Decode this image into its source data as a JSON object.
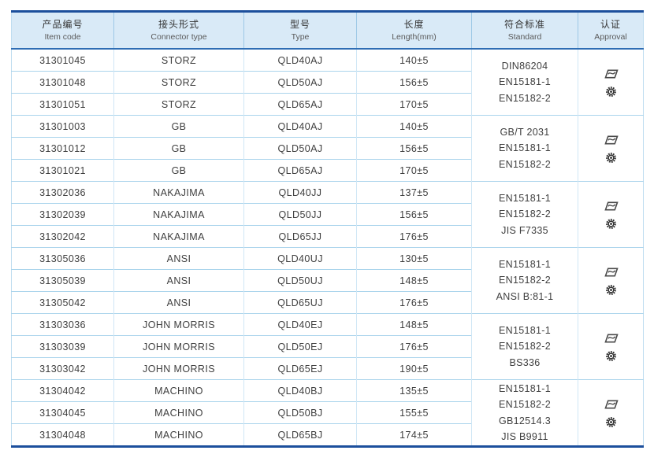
{
  "colors": {
    "table_border": "#1c4f9c",
    "header_bg": "#d9eaf7",
    "grid_line": "#aad4ec",
    "text": "#3f3f3f"
  },
  "table": {
    "columns": [
      {
        "zh": "产品编号",
        "en": "Item code"
      },
      {
        "zh": "接头形式",
        "en": "Connector type"
      },
      {
        "zh": "型号",
        "en": "Type"
      },
      {
        "zh": "长度",
        "en": "Length(mm)"
      },
      {
        "zh": "符合标准",
        "en": "Standard"
      },
      {
        "zh": "认证",
        "en": "Approval"
      }
    ],
    "groups": [
      {
        "rows": [
          {
            "code": "31301045",
            "connector": "STORZ",
            "type": "QLD40AJ",
            "length": "140±5"
          },
          {
            "code": "31301048",
            "connector": "STORZ",
            "type": "QLD50AJ",
            "length": "156±5"
          },
          {
            "code": "31301051",
            "connector": "STORZ",
            "type": "QLD65AJ",
            "length": "170±5"
          }
        ],
        "standards": [
          "DIN86204",
          "EN15181-1",
          "EN15182-2"
        ],
        "approval_icons": [
          "certification-flag-logo-icon",
          "certification-gear-seal-icon"
        ]
      },
      {
        "rows": [
          {
            "code": "31301003",
            "connector": "GB",
            "type": "QLD40AJ",
            "length": "140±5"
          },
          {
            "code": "31301012",
            "connector": "GB",
            "type": "QLD50AJ",
            "length": "156±5"
          },
          {
            "code": "31301021",
            "connector": "GB",
            "type": "QLD65AJ",
            "length": "170±5"
          }
        ],
        "standards": [
          "GB/T 2031",
          "EN15181-1",
          "EN15182-2"
        ],
        "approval_icons": [
          "certification-flag-logo-icon",
          "certification-gear-seal-icon"
        ]
      },
      {
        "rows": [
          {
            "code": "31302036",
            "connector": "NAKAJIMA",
            "type": "QLD40JJ",
            "length": "137±5"
          },
          {
            "code": "31302039",
            "connector": "NAKAJIMA",
            "type": "QLD50JJ",
            "length": "156±5"
          },
          {
            "code": "31302042",
            "connector": "NAKAJIMA",
            "type": "QLD65JJ",
            "length": "176±5"
          }
        ],
        "standards": [
          "EN15181-1",
          "EN15182-2",
          "JIS F7335"
        ],
        "approval_icons": [
          "certification-flag-logo-icon",
          "certification-gear-seal-icon"
        ]
      },
      {
        "rows": [
          {
            "code": "31305036",
            "connector": "ANSI",
            "type": "QLD40UJ",
            "length": "130±5"
          },
          {
            "code": "31305039",
            "connector": "ANSI",
            "type": "QLD50UJ",
            "length": "148±5"
          },
          {
            "code": "31305042",
            "connector": "ANSI",
            "type": "QLD65UJ",
            "length": "176±5"
          }
        ],
        "standards": [
          "EN15181-1",
          "EN15182-2",
          "ANSI B:81-1"
        ],
        "approval_icons": [
          "certification-flag-logo-icon",
          "certification-gear-seal-icon"
        ]
      },
      {
        "rows": [
          {
            "code": "31303036",
            "connector": "JOHN MORRIS",
            "type": "QLD40EJ",
            "length": "148±5"
          },
          {
            "code": "31303039",
            "connector": "JOHN MORRIS",
            "type": "QLD50EJ",
            "length": "176±5"
          },
          {
            "code": "31303042",
            "connector": "JOHN MORRIS",
            "type": "QLD65EJ",
            "length": "190±5"
          }
        ],
        "standards": [
          "EN15181-1",
          "EN15182-2",
          "BS336"
        ],
        "approval_icons": [
          "certification-flag-logo-icon",
          "certification-gear-seal-icon"
        ]
      },
      {
        "rows": [
          {
            "code": "31304042",
            "connector": "MACHINO",
            "type": "QLD40BJ",
            "length": "135±5"
          },
          {
            "code": "31304045",
            "connector": "MACHINO",
            "type": "QLD50BJ",
            "length": "155±5"
          },
          {
            "code": "31304048",
            "connector": "MACHINO",
            "type": "QLD65BJ",
            "length": "174±5"
          }
        ],
        "standards": [
          "EN15181-1",
          "EN15182-2",
          "GB12514.3",
          "JIS B9911"
        ],
        "approval_icons": [
          "certification-flag-logo-icon",
          "certification-gear-seal-icon"
        ]
      }
    ]
  }
}
